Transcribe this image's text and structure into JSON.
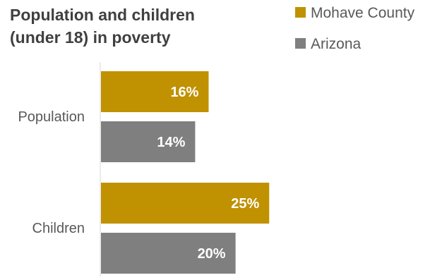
{
  "chart_data": {
    "type": "bar",
    "orientation": "horizontal",
    "title_lines": [
      "Population and children",
      "(under 18) in poverty"
    ],
    "categories": [
      "Population",
      "Children"
    ],
    "series": [
      {
        "name": "Mohave County",
        "values": [
          16,
          25
        ],
        "labels": [
          "16%",
          "25%"
        ],
        "color": "#C09100"
      },
      {
        "name": "Arizona",
        "values": [
          14,
          20
        ],
        "labels": [
          "14%",
          "20%"
        ],
        "color": "#7F7F7F"
      }
    ],
    "xlim": [
      0,
      32
    ],
    "grid": false,
    "legend_position": "top-right",
    "axis_color": "#D9D9D9"
  }
}
